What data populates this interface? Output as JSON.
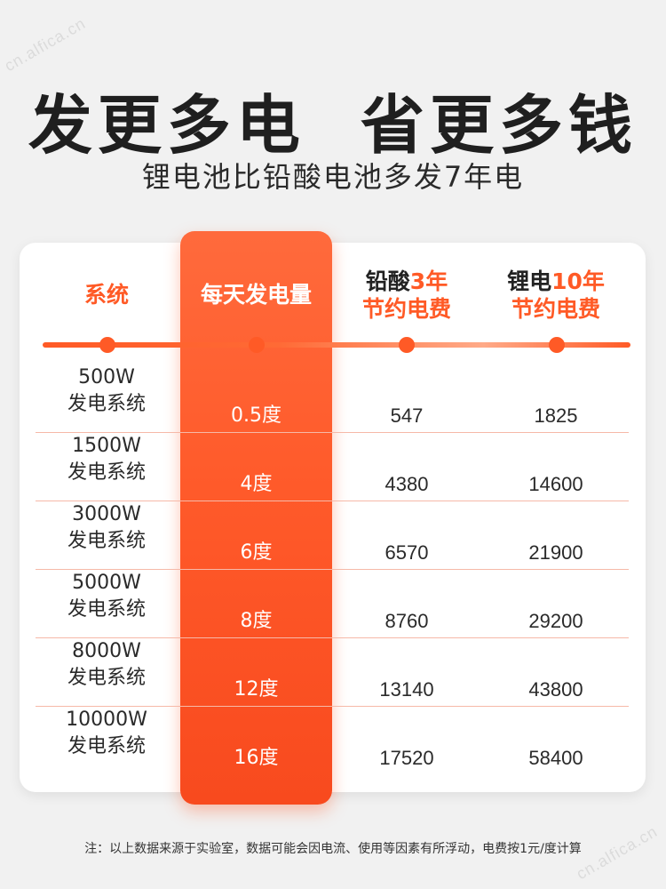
{
  "watermark": "cn.alfica.cn",
  "headline": "发更多电  省更多钱",
  "subheadline": "锂电池比铅酸电池多发7年电",
  "colors": {
    "accent": "#ff5a26",
    "background": "#f1f1f1"
  },
  "table": {
    "headers": {
      "system": "系统",
      "daily": "每天发电量",
      "lead_prefix": "铅酸",
      "lead_years": "3年",
      "lead_suffix": "节约电费",
      "li_prefix": "锂电",
      "li_years": "10年",
      "li_suffix": "节约电费"
    },
    "rows": [
      {
        "power": "500W",
        "type": "发电系统",
        "daily": "0.5度",
        "lead": "547",
        "li": "1825"
      },
      {
        "power": "1500W",
        "type": "发电系统",
        "daily": "4度",
        "lead": "4380",
        "li": "14600"
      },
      {
        "power": "3000W",
        "type": "发电系统",
        "daily": "6度",
        "lead": "6570",
        "li": "21900"
      },
      {
        "power": "5000W",
        "type": "发电系统",
        "daily": "8度",
        "lead": "8760",
        "li": "29200"
      },
      {
        "power": "8000W",
        "type": "发电系统",
        "daily": "12度",
        "lead": "13140",
        "li": "43800"
      },
      {
        "power": "10000W",
        "type": "发电系统",
        "daily": "16度",
        "lead": "17520",
        "li": "58400"
      }
    ]
  },
  "footnote": "注：以上数据来源于实验室，数据可能会因电流、使用等因素有所浮动，电费按1元/度计算"
}
